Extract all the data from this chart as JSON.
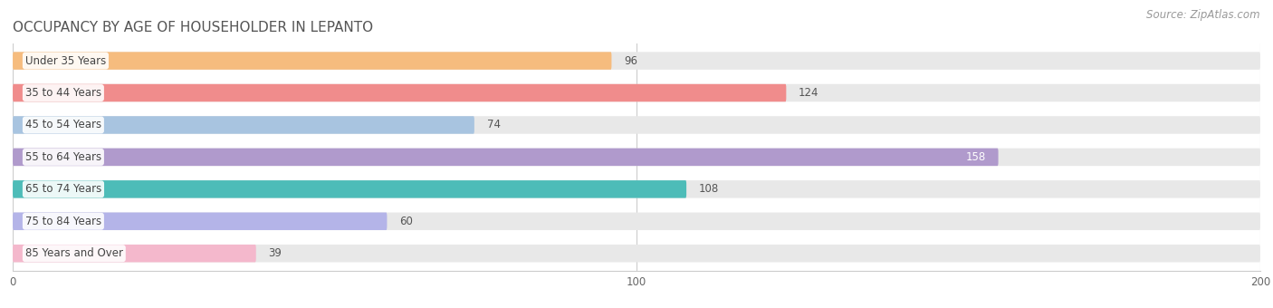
{
  "title": "OCCUPANCY BY AGE OF HOUSEHOLDER IN LEPANTO",
  "source": "Source: ZipAtlas.com",
  "categories": [
    "Under 35 Years",
    "35 to 44 Years",
    "45 to 54 Years",
    "55 to 64 Years",
    "65 to 74 Years",
    "75 to 84 Years",
    "85 Years and Over"
  ],
  "values": [
    96,
    124,
    74,
    158,
    108,
    60,
    39
  ],
  "bar_colors": [
    "#f6bc7e",
    "#f08c8c",
    "#a8c4e0",
    "#b09acc",
    "#4dbcb8",
    "#b4b4e8",
    "#f4b8cc"
  ],
  "xlim": [
    0,
    200
  ],
  "xticks": [
    0,
    100,
    200
  ],
  "bg_color": "#ffffff",
  "bar_bg_color": "#e8e8e8",
  "title_fontsize": 11,
  "label_fontsize": 8.5,
  "value_fontsize": 8.5,
  "source_fontsize": 8.5,
  "bar_height": 0.55,
  "bar_gap": 1.0
}
